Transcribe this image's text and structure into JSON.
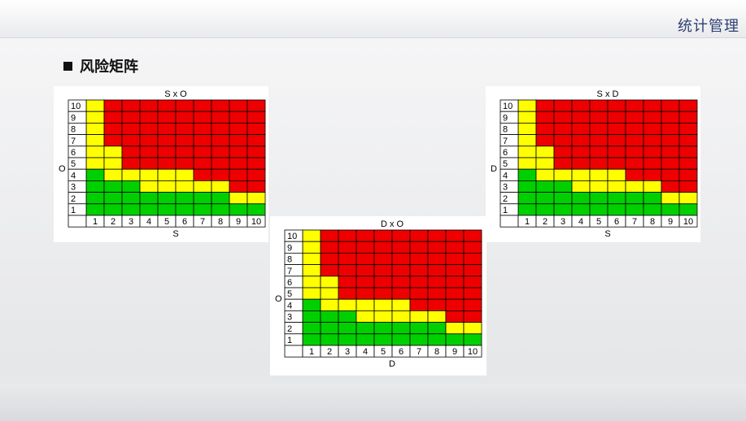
{
  "header": {
    "title": "统计管理"
  },
  "section": {
    "title": "风险矩阵"
  },
  "colors": {
    "high": "#ee0000",
    "medium": "#ffff00",
    "low": "#00d000"
  },
  "matrices": [
    {
      "title": "S x O",
      "xlabel": "S",
      "ylabel": "O",
      "x_ticks": [
        "1",
        "2",
        "3",
        "4",
        "5",
        "6",
        "7",
        "8",
        "9",
        "10"
      ],
      "y_ticks": [
        "10",
        "9",
        "8",
        "7",
        "6",
        "5",
        "4",
        "3",
        "2",
        "1"
      ],
      "rows": [
        "YRRRRRRRRR",
        "YRRRRRRRRR",
        "YRRRRRRRRR",
        "YRRRRRRRRR",
        "YYRRRRRRRR",
        "YYRRRRRRRR",
        "GYYYYYRRRR",
        "GGGYYYYYRR",
        "GGGGGGGGYY",
        "GGGGGGGGGG"
      ]
    },
    {
      "title": "S x D",
      "xlabel": "S",
      "ylabel": "D",
      "x_ticks": [
        "1",
        "2",
        "3",
        "4",
        "5",
        "6",
        "7",
        "8",
        "9",
        "10"
      ],
      "y_ticks": [
        "10",
        "9",
        "8",
        "7",
        "6",
        "5",
        "4",
        "3",
        "2",
        "1"
      ],
      "rows": [
        "YRRRRRRRRR",
        "YRRRRRRRRR",
        "YRRRRRRRRR",
        "YRRRRRRRRR",
        "YYRRRRRRRR",
        "YYRRRRRRRR",
        "GYYYYYRRRR",
        "GGGYYYYYRR",
        "GGGGGGGGYY",
        "GGGGGGGGGG"
      ]
    },
    {
      "title": "D x O",
      "xlabel": "D",
      "ylabel": "O",
      "x_ticks": [
        "1",
        "2",
        "3",
        "4",
        "5",
        "6",
        "7",
        "8",
        "9",
        "10"
      ],
      "y_ticks": [
        "10",
        "9",
        "8",
        "7",
        "6",
        "5",
        "4",
        "3",
        "2",
        "1"
      ],
      "rows": [
        "YRRRRRRRRR",
        "YRRRRRRRRR",
        "YRRRRRRRRR",
        "YRRRRRRRRR",
        "YYRRRRRRRR",
        "YYRRRRRRRR",
        "GYYYYYRRRR",
        "GGGYYYYYRR",
        "GGGGGGGGYY",
        "GGGGGGGGGG"
      ]
    }
  ]
}
